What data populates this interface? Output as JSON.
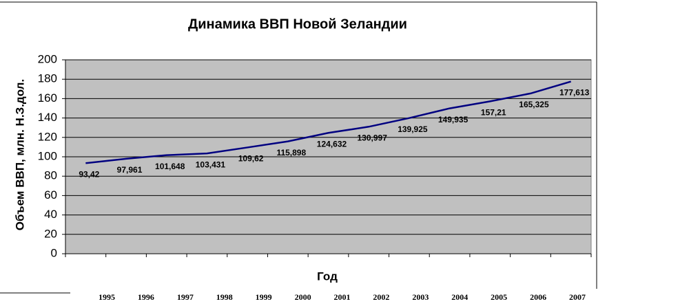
{
  "chart_data": {
    "type": "line",
    "title": "Динамика ВВП Новой Зеландии",
    "x_label": "Год",
    "y_label": "Объем ВВП, млн. Н.З.дол.",
    "categories": [
      "1995",
      "1996",
      "1997",
      "1998",
      "1999",
      "2000",
      "2001",
      "2002",
      "2003",
      "2004",
      "2005",
      "2006",
      "2007"
    ],
    "values": [
      93.42,
      97.961,
      101.648,
      103.431,
      109.62,
      115.898,
      124.632,
      130.997,
      139.925,
      149.935,
      157.21,
      165.325,
      177.613
    ],
    "value_labels": [
      "93,42",
      "97,961",
      "101,648",
      "103,431",
      "109,62",
      "115,898",
      "124,632",
      "130,997",
      "139,925",
      "149,935",
      "157,21",
      "165,325",
      "177,613"
    ],
    "color": "#000080",
    "ylim": [
      0,
      200
    ],
    "yticks": [
      0,
      20,
      40,
      60,
      80,
      100,
      120,
      140,
      160,
      180,
      200
    ],
    "grid": true
  }
}
